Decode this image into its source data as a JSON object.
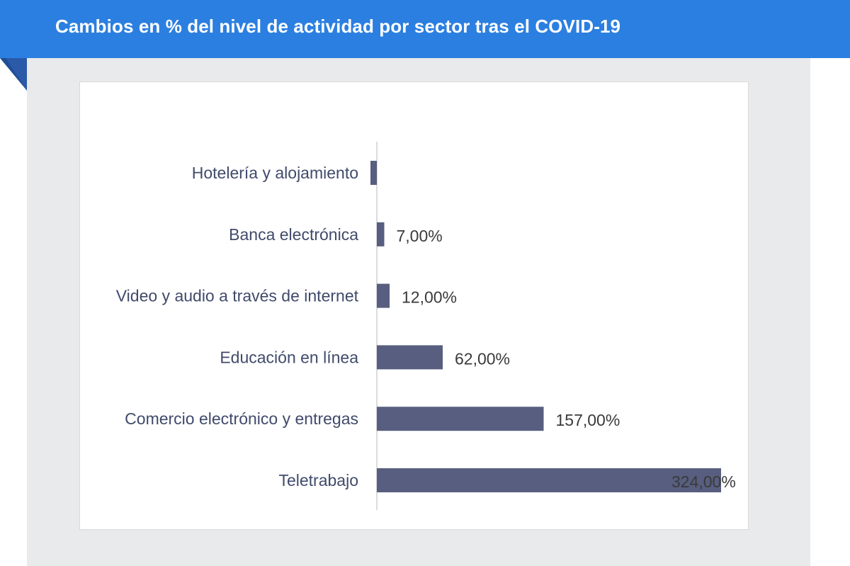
{
  "header": {
    "title": "Cambios en % del nivel de actividad por sector tras el COVID-19"
  },
  "colors": {
    "header_bg": "#2b7fe0",
    "panel_bg": "#e9eaec",
    "bar": "#575e7f",
    "axis": "#d0d0d0"
  },
  "chart_data": {
    "type": "bar",
    "orientation": "horizontal",
    "title": "",
    "xlabel": "",
    "ylabel": "",
    "grid": false,
    "legend": "none",
    "xlim": [
      -3,
      324
    ],
    "categories": [
      "Hotelería y alojamiento",
      "Banca electrónica",
      "Video y audio a través de internet",
      "Educación en línea",
      "Comercio electrónico y entregas",
      "Teletrabajo"
    ],
    "values": [
      -6,
      7,
      12,
      62,
      157,
      324
    ],
    "data_labels": [
      "",
      "7,00%",
      "12,00%",
      "62,00%",
      "157,00%",
      "324,00%"
    ]
  }
}
